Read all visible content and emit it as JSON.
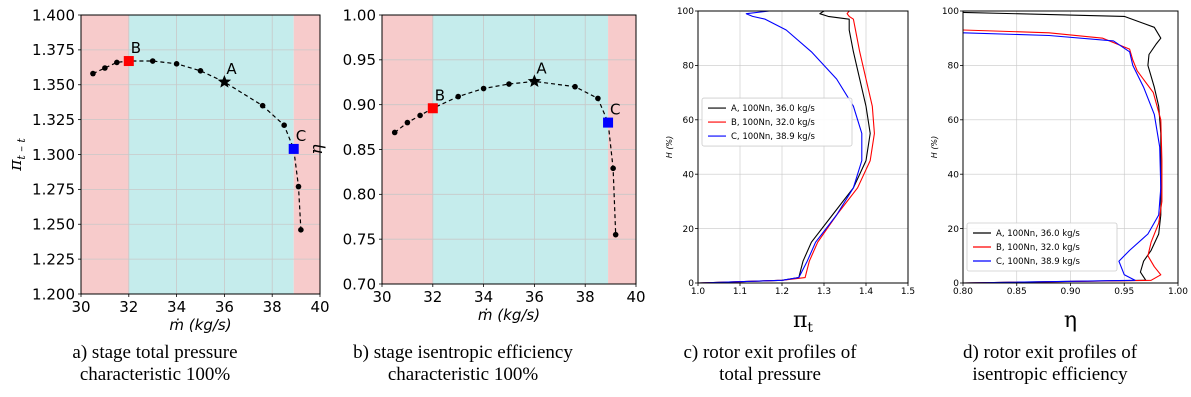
{
  "panels": [
    {
      "id": "a",
      "caption_lines": [
        "a) stage total pressure",
        "characteristic 100%"
      ]
    },
    {
      "id": "b",
      "caption_lines": [
        "b) stage isentropic efficiency",
        "characteristic 100%"
      ]
    },
    {
      "id": "c",
      "caption_lines": [
        "c) rotor exit profiles of",
        "total pressure"
      ]
    },
    {
      "id": "d",
      "caption_lines": [
        "d) rotor exit profiles of",
        "isentropic efficiency"
      ]
    }
  ],
  "chart_data": [
    {
      "type": "line",
      "panel": "a",
      "xlabel": "ṁ (kg/s)",
      "ylabel": "π_{t-t}",
      "xlim": [
        30,
        40
      ],
      "ylim": [
        1.2,
        1.4
      ],
      "xticks": [
        "30",
        "32",
        "34",
        "36",
        "38",
        "40"
      ],
      "yticks": [
        "1.200",
        "1.225",
        "1.250",
        "1.275",
        "1.300",
        "1.325",
        "1.350",
        "1.375",
        "1.400"
      ],
      "grid": true,
      "regions": [
        {
          "x": [
            30,
            32
          ],
          "color": "#f7cbcb"
        },
        {
          "x": [
            32,
            38.9
          ],
          "color": "#c5ecec"
        },
        {
          "x": [
            38.9,
            40
          ],
          "color": "#f7cbcb"
        }
      ],
      "series": [
        {
          "x": [
            30.5,
            31.0,
            31.5,
            32.0,
            33.0,
            34.0,
            35.0,
            36.0,
            37.6,
            38.5,
            38.9,
            39.1,
            39.2
          ],
          "y": [
            1.358,
            1.362,
            1.366,
            1.367,
            1.367,
            1.365,
            1.36,
            1.352,
            1.335,
            1.321,
            1.304,
            1.277,
            1.246
          ],
          "color": "#000000"
        }
      ],
      "markers": [
        {
          "label": "A",
          "x": 36.0,
          "y": 1.352,
          "shape": "star",
          "color": "#000000"
        },
        {
          "label": "B",
          "x": 32.0,
          "y": 1.367,
          "shape": "square",
          "color": "#ff0000"
        },
        {
          "label": "C",
          "x": 38.9,
          "y": 1.304,
          "shape": "square",
          "color": "#0000ff"
        }
      ]
    },
    {
      "type": "line",
      "panel": "b",
      "xlabel": "ṁ (kg/s)",
      "ylabel": "η",
      "xlim": [
        30,
        40
      ],
      "ylim": [
        0.7,
        1.0
      ],
      "xticks": [
        "30",
        "32",
        "34",
        "36",
        "38",
        "40"
      ],
      "yticks": [
        "0.70",
        "0.75",
        "0.80",
        "0.85",
        "0.90",
        "0.95",
        "1.00"
      ],
      "grid": true,
      "regions": [
        {
          "x": [
            30,
            32
          ],
          "color": "#f7cbcb"
        },
        {
          "x": [
            32,
            38.9
          ],
          "color": "#c5ecec"
        },
        {
          "x": [
            38.9,
            40
          ],
          "color": "#f7cbcb"
        }
      ],
      "series": [
        {
          "x": [
            30.5,
            31.0,
            31.5,
            32.0,
            33.0,
            34.0,
            35.0,
            36.0,
            37.6,
            38.5,
            38.9,
            39.1,
            39.2
          ],
          "y": [
            0.869,
            0.88,
            0.888,
            0.896,
            0.909,
            0.918,
            0.923,
            0.926,
            0.92,
            0.907,
            0.88,
            0.829,
            0.755
          ],
          "color": "#000000"
        }
      ],
      "markers": [
        {
          "label": "A",
          "x": 36.0,
          "y": 0.926,
          "shape": "star",
          "color": "#000000"
        },
        {
          "label": "B",
          "x": 32.0,
          "y": 0.896,
          "shape": "square",
          "color": "#ff0000"
        },
        {
          "label": "C",
          "x": 38.9,
          "y": 0.88,
          "shape": "square",
          "color": "#0000ff"
        }
      ]
    },
    {
      "type": "line",
      "panel": "c",
      "xlabel": "πt",
      "ylabel": "H (%)",
      "xlim": [
        1.0,
        1.5
      ],
      "ylim": [
        0,
        100
      ],
      "xticks": [
        "1.0",
        "1.1",
        "1.2",
        "1.3",
        "1.4",
        "1.5"
      ],
      "yticks": [
        "0",
        "20",
        "40",
        "60",
        "80",
        "100"
      ],
      "grid": true,
      "legend": "center-left",
      "series": [
        {
          "name": "A, 100Nn, 36.0 kg/s",
          "color": "#000000",
          "x": [
            1.0,
            1.2,
            1.24,
            1.245,
            1.25,
            1.27,
            1.32,
            1.37,
            1.4,
            1.41,
            1.4,
            1.385,
            1.37,
            1.36,
            1.36,
            1.31,
            1.29,
            1.3
          ],
          "y": [
            0,
            1,
            2,
            5,
            8,
            15,
            25,
            35,
            45,
            55,
            65,
            75,
            85,
            93,
            97,
            98,
            99,
            100
          ]
        },
        {
          "name": "B, 100Nn, 32.0 kg/s",
          "color": "#ff0000",
          "x": [
            1.0,
            1.2,
            1.255,
            1.26,
            1.265,
            1.285,
            1.33,
            1.38,
            1.41,
            1.42,
            1.415,
            1.4,
            1.385,
            1.375,
            1.37,
            1.36,
            1.355,
            1.36
          ],
          "y": [
            0,
            1,
            2,
            5,
            8,
            15,
            25,
            35,
            45,
            55,
            65,
            75,
            85,
            93,
            97,
            98,
            99,
            100
          ]
        },
        {
          "name": "C, 100Nn, 38.9 kg/s",
          "color": "#0000ff",
          "x": [
            1.0,
            1.2,
            1.24,
            1.25,
            1.26,
            1.28,
            1.33,
            1.37,
            1.39,
            1.39,
            1.37,
            1.33,
            1.27,
            1.21,
            1.16,
            1.13,
            1.115,
            1.17
          ],
          "y": [
            0,
            1,
            2,
            5,
            8,
            15,
            25,
            35,
            45,
            55,
            65,
            75,
            85,
            93,
            97,
            98,
            99,
            100
          ]
        }
      ]
    },
    {
      "type": "line",
      "panel": "d",
      "xlabel": "η",
      "ylabel": "H (%)",
      "xlim": [
        0.8,
        1.0
      ],
      "ylim": [
        0,
        100
      ],
      "xticks": [
        "0.80",
        "0.85",
        "0.90",
        "0.95",
        "1.00"
      ],
      "yticks": [
        "0",
        "20",
        "40",
        "60",
        "80",
        "100"
      ],
      "grid": true,
      "legend": "bottom-left",
      "series": [
        {
          "name": "A, 100Nn, 36.0 kg/s",
          "color": "#000000",
          "x": [
            0.8,
            0.97,
            0.965,
            0.968,
            0.975,
            0.982,
            0.984,
            0.984,
            0.984,
            0.982,
            0.978,
            0.972,
            0.973,
            0.98,
            0.984,
            0.978,
            0.95,
            0.8
          ],
          "y": [
            0,
            1,
            4,
            8,
            12,
            18,
            25,
            40,
            55,
            65,
            72,
            80,
            84,
            88,
            90,
            94,
            98,
            99.5
          ]
        },
        {
          "name": "B, 100Nn, 32.0 kg/s",
          "color": "#ff0000",
          "x": [
            0.8,
            0.975,
            0.984,
            0.978,
            0.972,
            0.975,
            0.982,
            0.985,
            0.985,
            0.984,
            0.977,
            0.962,
            0.958,
            0.955,
            0.93,
            0.88,
            0.8
          ],
          "y": [
            0,
            1,
            3,
            6,
            10,
            15,
            22,
            30,
            45,
            60,
            70,
            78,
            82,
            86,
            90,
            92,
            93
          ]
        },
        {
          "name": "C, 100Nn, 38.9 kg/s",
          "color": "#0000ff",
          "x": [
            0.8,
            0.96,
            0.95,
            0.945,
            0.955,
            0.972,
            0.982,
            0.984,
            0.983,
            0.978,
            0.968,
            0.958,
            0.955,
            0.94,
            0.88,
            0.8
          ],
          "y": [
            0,
            1,
            3,
            8,
            12,
            18,
            25,
            35,
            50,
            62,
            72,
            80,
            85,
            89,
            91,
            92
          ]
        }
      ]
    }
  ]
}
